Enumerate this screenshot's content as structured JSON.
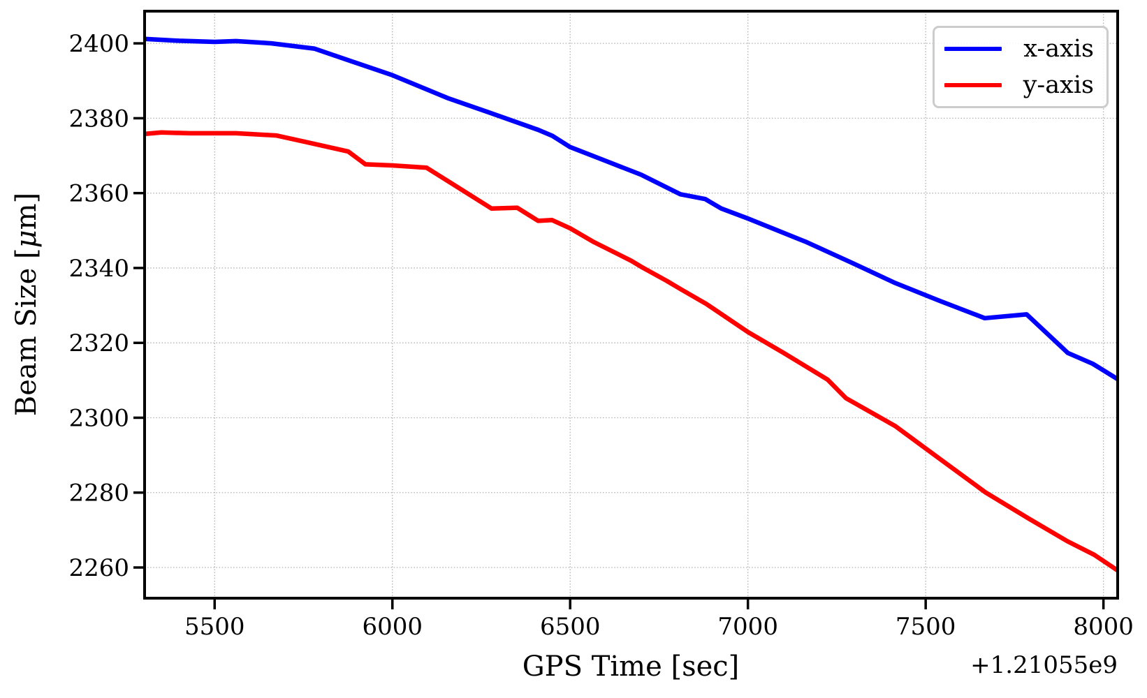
{
  "figure": {
    "background": "#ffffff",
    "plot_border_color": "#000000",
    "grid_color": "#b0b0b0"
  },
  "chart_data": {
    "type": "line",
    "title": "",
    "xlabel": "GPS Time [sec]",
    "ylabel": "Beam Size [μm]",
    "ylabel_prefix": "Beam Size [",
    "ylabel_mu": "μ",
    "ylabel_suffix": "m]",
    "x_offset_text": "+1.21055e9",
    "xlim": [
      5303,
      8040
    ],
    "ylim": [
      2251.8,
      2408.6
    ],
    "x_ticks": [
      5500,
      6000,
      6500,
      7000,
      7500,
      8000
    ],
    "y_ticks": [
      2260,
      2280,
      2300,
      2320,
      2340,
      2360,
      2380,
      2400
    ],
    "grid": true,
    "grid_style": "dotted",
    "legend": {
      "position": "upper right",
      "entries": [
        {
          "label": "x-axis",
          "color": "#0000ff"
        },
        {
          "label": "y-axis",
          "color": "#ff0000"
        }
      ]
    },
    "series": [
      {
        "name": "x-axis",
        "color": "#0000ff",
        "points": [
          [
            5303,
            2401.2
          ],
          [
            5400,
            2400.7
          ],
          [
            5500,
            2400.4
          ],
          [
            5560,
            2400.6
          ],
          [
            5660,
            2400.0
          ],
          [
            5780,
            2398.6
          ],
          [
            6000,
            2391.5
          ],
          [
            6155,
            2385.4
          ],
          [
            6270,
            2381.6
          ],
          [
            6410,
            2376.9
          ],
          [
            6450,
            2375.3
          ],
          [
            6500,
            2372.3
          ],
          [
            6600,
            2368.6
          ],
          [
            6700,
            2364.9
          ],
          [
            6810,
            2359.7
          ],
          [
            6880,
            2358.4
          ],
          [
            6925,
            2355.9
          ],
          [
            7000,
            2353.2
          ],
          [
            7165,
            2346.9
          ],
          [
            7290,
            2341.5
          ],
          [
            7414,
            2336.0
          ],
          [
            7540,
            2331.2
          ],
          [
            7666,
            2326.6
          ],
          [
            7784,
            2327.6
          ],
          [
            7900,
            2317.3
          ],
          [
            7970,
            2314.4
          ],
          [
            8040,
            2310.3
          ]
        ]
      },
      {
        "name": "y-axis",
        "color": "#ff0000",
        "points": [
          [
            5303,
            2375.8
          ],
          [
            5350,
            2376.2
          ],
          [
            5430,
            2376.0
          ],
          [
            5560,
            2376.0
          ],
          [
            5673,
            2375.4
          ],
          [
            5750,
            2373.8
          ],
          [
            5876,
            2371.1
          ],
          [
            5924,
            2367.7
          ],
          [
            6000,
            2367.4
          ],
          [
            6096,
            2366.8
          ],
          [
            6279,
            2355.9
          ],
          [
            6351,
            2356.1
          ],
          [
            6410,
            2352.6
          ],
          [
            6449,
            2352.8
          ],
          [
            6500,
            2350.6
          ],
          [
            6567,
            2346.9
          ],
          [
            6626,
            2344.1
          ],
          [
            6672,
            2341.9
          ],
          [
            6704,
            2340.1
          ],
          [
            6771,
            2336.6
          ],
          [
            6810,
            2334.4
          ],
          [
            6883,
            2330.4
          ],
          [
            7000,
            2322.9
          ],
          [
            7099,
            2317.4
          ],
          [
            7224,
            2310.2
          ],
          [
            7276,
            2305.2
          ],
          [
            7414,
            2297.8
          ],
          [
            7540,
            2289.0
          ],
          [
            7669,
            2280.0
          ],
          [
            7791,
            2273.0
          ],
          [
            7899,
            2267.0
          ],
          [
            7974,
            2263.4
          ],
          [
            8040,
            2259.2
          ]
        ]
      }
    ]
  }
}
